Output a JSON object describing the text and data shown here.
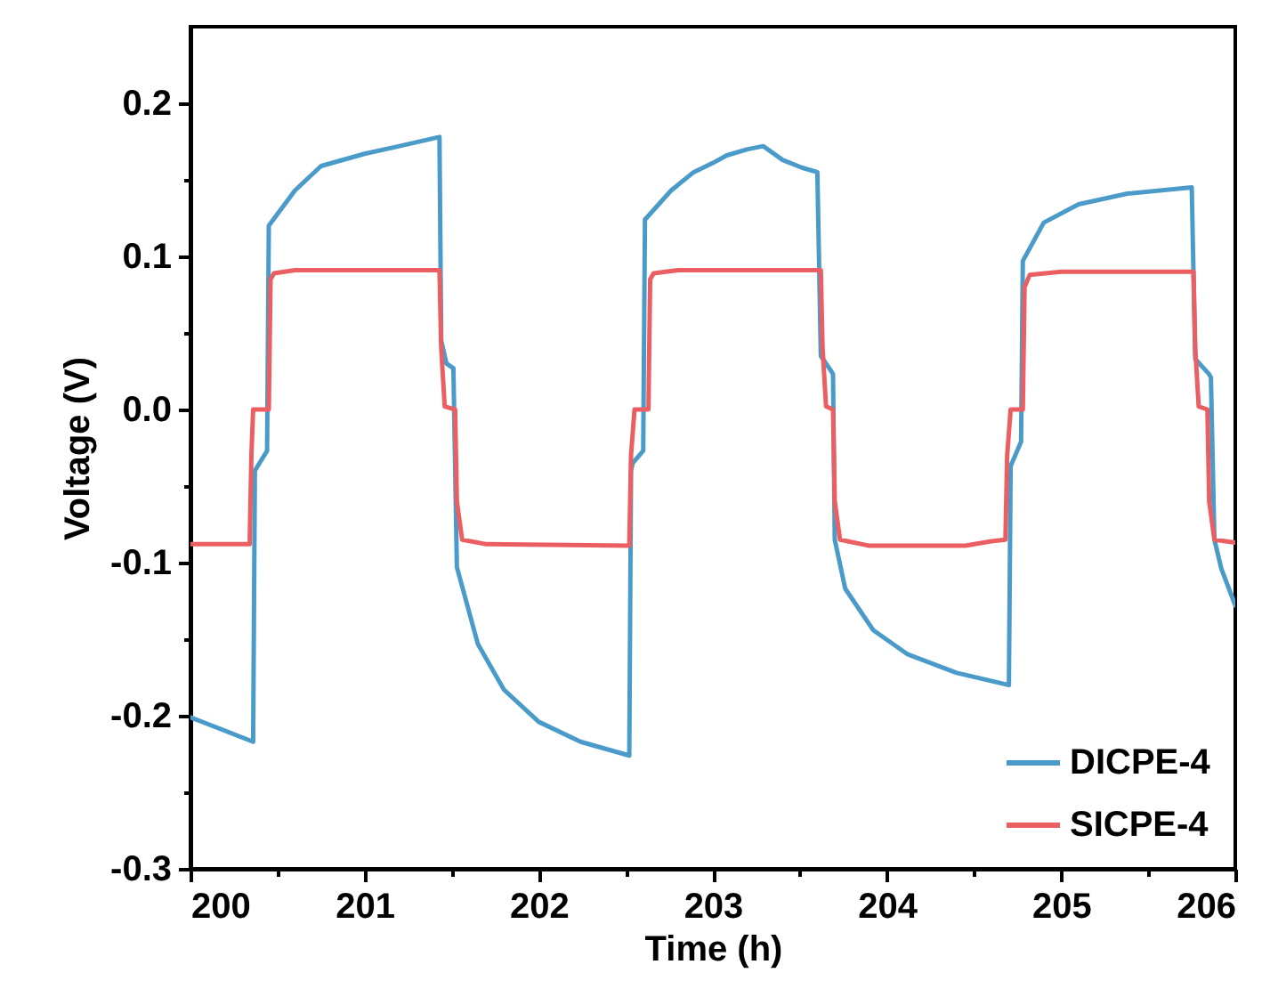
{
  "chart_data": {
    "type": "line",
    "xlabel": "Time (h)",
    "ylabel": "Voltage (V)",
    "xlim": [
      200,
      206
    ],
    "ylim": [
      -0.3,
      0.25
    ],
    "xticks": [
      200,
      {
        "value": 200.5,
        "label": null
      },
      201,
      {
        "value": 201.5,
        "label": null
      },
      202,
      {
        "value": 202.5,
        "label": null
      },
      203,
      {
        "value": 203.5,
        "label": null
      },
      204,
      {
        "value": 204.5,
        "label": null
      },
      205,
      {
        "value": 205.5,
        "label": null
      },
      206
    ],
    "yticks": [
      -0.3,
      {
        "value": -0.25,
        "label": null
      },
      -0.2,
      {
        "value": -0.15,
        "label": null
      },
      -0.1,
      {
        "value": -0.05,
        "label": null
      },
      {
        "value": 0,
        "label": "0.0"
      },
      {
        "value": 0.05,
        "label": null
      },
      0.1,
      {
        "value": 0.15,
        "label": null
      },
      0.2
    ],
    "legend": "bottom right",
    "grid": false,
    "marker": "none",
    "line_style": "solid",
    "series": [
      {
        "name": "DICPE-4",
        "color": "#4a9bc9",
        "x": [
          200,
          200.36,
          200.37,
          200.44,
          200.45,
          200.6,
          200.75,
          201.0,
          201.2,
          201.43,
          201.44,
          201.47,
          201.51,
          201.53,
          201.65,
          201.8,
          202.0,
          202.24,
          202.52,
          202.53,
          202.54,
          202.6,
          202.61,
          202.76,
          202.89,
          203.0,
          203.08,
          203.2,
          203.29,
          203.4,
          203.51,
          203.6,
          203.62,
          203.68,
          203.69,
          203.7,
          203.76,
          203.92,
          204.12,
          204.4,
          204.7,
          204.71,
          204.77,
          204.78,
          204.9,
          205.1,
          205.38,
          205.75,
          205.77,
          205.85,
          205.86,
          205.88,
          205.92,
          206
        ],
        "values": [
          -0.201,
          -0.217,
          -0.04,
          -0.027,
          0.12,
          0.143,
          0.159,
          0.167,
          0.172,
          0.178,
          0.045,
          0.03,
          0.027,
          -0.103,
          -0.153,
          -0.183,
          -0.204,
          -0.217,
          -0.226,
          -0.04,
          -0.035,
          -0.027,
          0.124,
          0.143,
          0.155,
          0.161,
          0.166,
          0.17,
          0.172,
          0.163,
          0.158,
          0.155,
          0.035,
          0.025,
          0.023,
          -0.085,
          -0.117,
          -0.144,
          -0.16,
          -0.172,
          -0.18,
          -0.037,
          -0.021,
          0.097,
          0.122,
          0.134,
          0.141,
          0.145,
          0.033,
          0.023,
          0.021,
          -0.085,
          -0.104,
          -0.128
        ]
      },
      {
        "name": "SICPE-4",
        "color": "#eb5f62",
        "x": [
          200,
          200.34,
          200.35,
          200.36,
          200.45,
          200.46,
          200.48,
          200.6,
          201.43,
          201.44,
          201.46,
          201.52,
          201.53,
          201.56,
          201.7,
          202.52,
          202.53,
          202.55,
          202.63,
          202.64,
          202.66,
          202.8,
          203.62,
          203.63,
          203.65,
          203.69,
          203.7,
          203.73,
          203.9,
          204.45,
          204.6,
          204.68,
          204.69,
          204.71,
          204.78,
          204.79,
          204.82,
          205.0,
          205.76,
          205.77,
          205.79,
          205.84,
          205.85,
          205.88,
          206
        ],
        "values": [
          -0.088,
          -0.088,
          -0.03,
          0.0,
          0.0,
          0.085,
          0.089,
          0.091,
          0.091,
          0.04,
          0.002,
          0.0,
          -0.06,
          -0.085,
          -0.088,
          -0.089,
          -0.03,
          0.0,
          0.0,
          0.085,
          0.089,
          0.091,
          0.091,
          0.04,
          0.002,
          0.0,
          -0.06,
          -0.085,
          -0.089,
          -0.089,
          -0.086,
          -0.085,
          -0.03,
          0.0,
          0.0,
          0.08,
          0.088,
          0.09,
          0.09,
          0.04,
          0.002,
          0.0,
          -0.06,
          -0.085,
          -0.087
        ]
      }
    ]
  }
}
